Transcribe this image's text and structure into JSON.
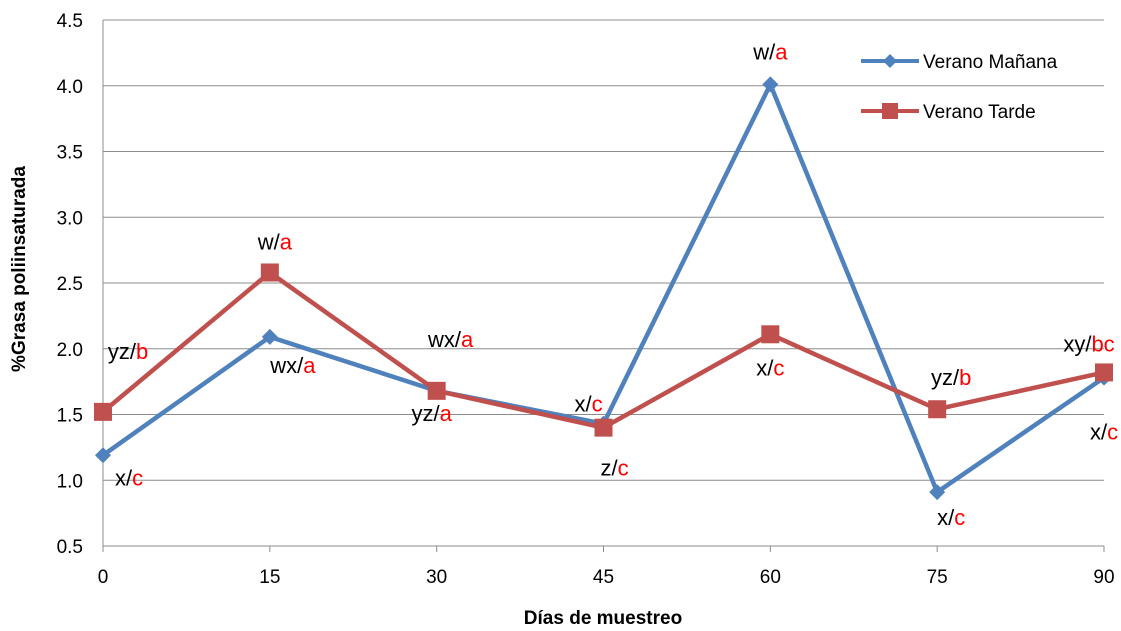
{
  "chart_data": {
    "type": "line",
    "xlabel": "Días de muestreo",
    "ylabel": "%Grasa poliinsaturada",
    "x": [
      0,
      15,
      30,
      45,
      60,
      75,
      90
    ],
    "xticks": [
      "0",
      "15",
      "30",
      "45",
      "60",
      "75",
      "90"
    ],
    "ylim": [
      0.5,
      4.5
    ],
    "yticks": [
      "0.5",
      "1.0",
      "1.5",
      "2.0",
      "2.5",
      "3.0",
      "3.5",
      "4.0",
      "4.5"
    ],
    "grid": "horizontal",
    "legend_position": "top-right",
    "series": [
      {
        "name": "Verano Mañana",
        "color": "#4f81bd",
        "marker": "diamond",
        "values": [
          1.19,
          2.09,
          1.68,
          1.43,
          4.01,
          0.91,
          1.78
        ],
        "labels": [
          {
            "plain": "x/",
            "colored": "c"
          },
          {
            "plain": "wx/",
            "colored": "a"
          },
          {
            "plain": "yz/",
            "colored": "a"
          },
          {
            "plain": "x/",
            "colored": "c"
          },
          {
            "plain": "w/",
            "colored": "a"
          },
          {
            "plain": "x/",
            "colored": "c"
          },
          {
            "plain": "x/",
            "colored": "c"
          }
        ]
      },
      {
        "name": "Verano Tarde",
        "color": "#c0504d",
        "marker": "square",
        "values": [
          1.52,
          2.58,
          1.68,
          1.4,
          2.11,
          1.54,
          1.82
        ],
        "labels": [
          {
            "plain": "yz/",
            "colored": "b"
          },
          {
            "plain": "w/",
            "colored": "a"
          },
          {
            "plain": "wx/",
            "colored": "a"
          },
          {
            "plain": "z/",
            "colored": "c"
          },
          {
            "plain": "x/",
            "colored": "c"
          },
          {
            "plain": "yz/",
            "colored": "b"
          },
          {
            "plain": "xy/",
            "colored": "bc"
          }
        ]
      }
    ],
    "label_color": "#ff0000"
  }
}
